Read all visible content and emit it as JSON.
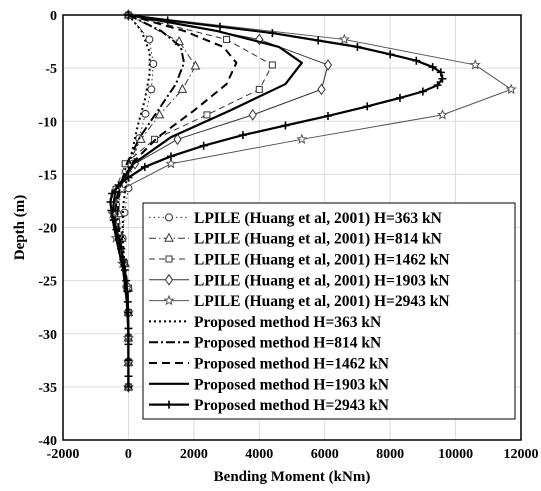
{
  "chart_data": {
    "type": "line",
    "title": "",
    "xlabel": "Bending Moment (kNm)",
    "ylabel": "Depth (m)",
    "xlim": [
      -2000,
      12000
    ],
    "ylim": [
      -40,
      0
    ],
    "xticks": [
      -2000,
      0,
      2000,
      4000,
      6000,
      8000,
      10000,
      12000
    ],
    "yticks": [
      0,
      -5,
      -10,
      -15,
      -20,
      -25,
      -30,
      -35,
      -40
    ],
    "grid": true,
    "legend_position": "lower-right",
    "series": [
      {
        "name": "LPILE (Huang et al, 2001) H=363 kN",
        "style": "dotted",
        "marker": "circle",
        "color": "#333333",
        "x": [
          0,
          640,
          760,
          700,
          520,
          330,
          130,
          0,
          -120,
          -180,
          -150,
          -60,
          0,
          0,
          0,
          0
        ],
        "y": [
          0,
          -2.3,
          -4.6,
          -7.0,
          -9.3,
          -11.6,
          -14.0,
          -16.3,
          -18.6,
          -21.0,
          -23.3,
          -25.6,
          -28.0,
          -30.3,
          -32.6,
          -35.0
        ]
      },
      {
        "name": "LPILE (Huang et al, 2001) H=814 kN",
        "style": "dashdot",
        "marker": "triangle",
        "color": "#333333",
        "x": [
          0,
          1550,
          2050,
          1650,
          950,
          380,
          0,
          -240,
          -300,
          -200,
          -100,
          0,
          0,
          0,
          0,
          0
        ],
        "y": [
          0,
          -2.5,
          -4.8,
          -7.0,
          -9.4,
          -11.7,
          -14.0,
          -16.4,
          -18.7,
          -21.0,
          -23.4,
          -25.7,
          -28.0,
          -30.4,
          -32.7,
          -35.0
        ]
      },
      {
        "name": "LPILE (Huang et al, 2001) H=1462 kN",
        "style": "dashed",
        "marker": "square",
        "color": "#333333",
        "x": [
          0,
          3000,
          4400,
          4000,
          2400,
          800,
          -100,
          -380,
          -420,
          -280,
          -120,
          0,
          0,
          0,
          0,
          0
        ],
        "y": [
          0,
          -2.3,
          -4.7,
          -7.0,
          -9.4,
          -11.7,
          -14.0,
          -16.4,
          -18.7,
          -21.0,
          -23.4,
          -25.7,
          -28.0,
          -30.4,
          -32.7,
          -35.0
        ]
      },
      {
        "name": "LPILE (Huang et al, 2001) H=1903 kN",
        "style": "solid-thin",
        "marker": "diamond",
        "color": "#333333",
        "x": [
          0,
          4000,
          6100,
          5900,
          3800,
          1500,
          200,
          -300,
          -450,
          -320,
          -140,
          0,
          0,
          0,
          0,
          0
        ],
        "y": [
          0,
          -2.3,
          -4.7,
          -7.0,
          -9.4,
          -11.7,
          -14.0,
          -16.4,
          -18.7,
          -21.0,
          -23.4,
          -25.7,
          -28.0,
          -30.4,
          -32.7,
          -35.0
        ]
      },
      {
        "name": "LPILE (Huang et al, 2001) H=2943 kN",
        "style": "solid-thin",
        "marker": "star",
        "color": "#555555",
        "x": [
          0,
          6600,
          10600,
          11700,
          9600,
          5300,
          1300,
          -200,
          -480,
          -380,
          -180,
          -40,
          0,
          0,
          0,
          0
        ],
        "y": [
          0,
          -2.3,
          -4.7,
          -7.0,
          -9.4,
          -11.7,
          -14.0,
          -16.4,
          -18.7,
          -21.0,
          -23.4,
          -25.7,
          -28.0,
          -30.4,
          -32.7,
          -35.0
        ]
      },
      {
        "name": "Proposed method H=363 kN",
        "style": "dotted-thick",
        "marker": "none",
        "color": "#000000",
        "x": [
          0,
          400,
          650,
          650,
          500,
          280,
          100,
          -60,
          -160,
          -180,
          -130,
          -60,
          -15,
          0,
          0,
          0
        ],
        "y": [
          0,
          -1.5,
          -3.5,
          -5.5,
          -8.0,
          -10.5,
          -13.0,
          -15.5,
          -18.0,
          -20.5,
          -23.0,
          -25.5,
          -28.0,
          -30.0,
          -32.5,
          -35.0
        ]
      },
      {
        "name": "Proposed method H=814 kN",
        "style": "dashdot-thick",
        "marker": "none",
        "color": "#000000",
        "x": [
          0,
          1000,
          1600,
          1700,
          1450,
          900,
          350,
          -50,
          -280,
          -340,
          -230,
          -110,
          -30,
          0,
          0,
          0
        ],
        "y": [
          0,
          -1.5,
          -3.0,
          -4.5,
          -6.5,
          -9.0,
          -11.5,
          -14.0,
          -16.5,
          -19.0,
          -21.5,
          -24.0,
          -27.0,
          -30.0,
          -32.5,
          -35.0
        ]
      },
      {
        "name": "Proposed method H=1462 kN",
        "style": "dashed-thick",
        "marker": "none",
        "color": "#000000",
        "x": [
          0,
          1700,
          2900,
          3300,
          3000,
          2000,
          900,
          100,
          -320,
          -420,
          -300,
          -140,
          -40,
          0,
          0,
          0
        ],
        "y": [
          0,
          -1.5,
          -3.0,
          -4.5,
          -6.5,
          -9.0,
          -11.5,
          -14.0,
          -16.5,
          -19.0,
          -21.5,
          -24.0,
          -27.0,
          -30.0,
          -32.5,
          -35.0
        ]
      },
      {
        "name": "Proposed method H=1903 kN",
        "style": "solid-thick",
        "marker": "none",
        "color": "#000000",
        "x": [
          0,
          2700,
          4600,
          5300,
          4800,
          3100,
          1300,
          150,
          -400,
          -500,
          -340,
          -160,
          -50,
          0,
          0,
          0
        ],
        "y": [
          0,
          -1.5,
          -3.0,
          -4.5,
          -6.5,
          -9.0,
          -11.5,
          -14.0,
          -16.5,
          -19.0,
          -21.5,
          -24.0,
          -27.0,
          -30.0,
          -32.5,
          -35.0
        ]
      },
      {
        "name": "Proposed method H=2943 kN",
        "style": "solid-thick",
        "marker": "plus",
        "color": "#000000",
        "x": [
          0,
          1200,
          2800,
          4400,
          5800,
          7000,
          8000,
          8800,
          9300,
          9550,
          9600,
          9450,
          9000,
          8300,
          7300,
          6100,
          4800,
          3500,
          2300,
          1300,
          500,
          0,
          -300,
          -500,
          -550,
          -520,
          -450,
          -370,
          -290,
          -220,
          -160,
          -110,
          -70,
          -40,
          -20,
          -10,
          0,
          0,
          0,
          0,
          0
        ],
        "y": [
          0,
          -0.5,
          -1.1,
          -1.7,
          -2.4,
          -3.0,
          -3.7,
          -4.3,
          -4.9,
          -5.4,
          -6.0,
          -6.6,
          -7.2,
          -7.8,
          -8.6,
          -9.5,
          -10.4,
          -11.3,
          -12.3,
          -13.3,
          -14.3,
          -15.3,
          -16.0,
          -16.8,
          -17.6,
          -18.4,
          -19.3,
          -20.2,
          -21.1,
          -22.0,
          -23.0,
          -24.0,
          -25.0,
          -26.0,
          -27.0,
          -28.0,
          -29.5,
          -31.0,
          -32.5,
          -34.0,
          -35.0
        ]
      }
    ]
  }
}
